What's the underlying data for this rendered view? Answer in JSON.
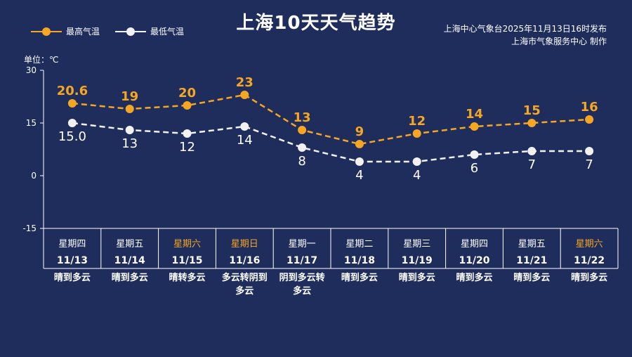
{
  "title": "上海10天天气趋势",
  "legend": {
    "high": "最高气温",
    "low": "最低气温"
  },
  "source": {
    "line1": "上海中心气象台2025年11月13日16时发布",
    "line2": "上海市气象服务中心 制作"
  },
  "unit_label": "单位：℃",
  "colors": {
    "background": "#1f2d5c",
    "high": "#f5a623",
    "low": "#f1f1f1",
    "weekend": "#f5a623"
  },
  "chart_data": {
    "type": "line",
    "ylim": [
      -15,
      30
    ],
    "yticks": [
      30,
      15,
      0,
      -15
    ],
    "grid": false,
    "legend_position": "top-left",
    "x": [
      "11/13",
      "11/14",
      "11/15",
      "11/16",
      "11/17",
      "11/18",
      "11/19",
      "11/20",
      "11/21",
      "11/22"
    ],
    "weekdays": [
      "星期四",
      "星期五",
      "星期六",
      "星期日",
      "星期一",
      "星期二",
      "星期三",
      "星期四",
      "星期五",
      "星期六"
    ],
    "weekend": [
      false,
      false,
      true,
      true,
      false,
      false,
      false,
      false,
      false,
      true
    ],
    "conditions": [
      [
        "晴到多云"
      ],
      [
        "晴到多云"
      ],
      [
        "晴转多云"
      ],
      [
        "多云转阴到",
        "多云"
      ],
      [
        "阴到多云转",
        "多云"
      ],
      [
        "晴到多云"
      ],
      [
        "晴到多云"
      ],
      [
        "晴到多云"
      ],
      [
        "晴到多云"
      ],
      [
        "晴到多云"
      ]
    ],
    "series": [
      {
        "name": "最高气温",
        "values": [
          20.6,
          19,
          20,
          23,
          13,
          9,
          12,
          14,
          15,
          16
        ],
        "labels": [
          "20.6",
          "19",
          "20",
          "23",
          "13",
          "9",
          "12",
          "14",
          "15",
          "16"
        ]
      },
      {
        "name": "最低气温",
        "values": [
          15.0,
          13,
          12,
          14,
          8,
          4,
          4,
          6,
          7,
          7
        ],
        "labels": [
          "15.0",
          "13",
          "12",
          "14",
          "8",
          "4",
          "4",
          "6",
          "7",
          "7"
        ]
      }
    ]
  }
}
